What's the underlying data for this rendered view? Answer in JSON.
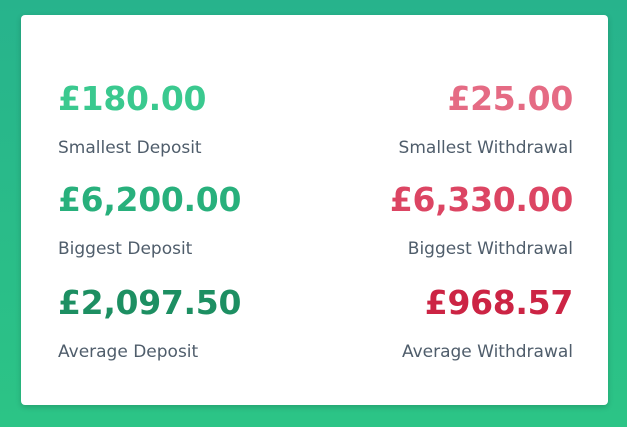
{
  "deposits": [
    {
      "amount": "£180.00",
      "label": "Smallest Deposit"
    },
    {
      "amount": "£6,200.00",
      "label": "Biggest Deposit"
    },
    {
      "amount": "£2,097.50",
      "label": "Average Deposit"
    }
  ],
  "withdrawals": [
    {
      "amount": "£25.00",
      "label": "Smallest Withdrawal"
    },
    {
      "amount": "£6,330.00",
      "label": "Biggest Withdrawal"
    },
    {
      "amount": "£968.57",
      "label": "Average Withdrawal"
    }
  ],
  "colors": {
    "background_top": "#27b38c",
    "background_bottom": "#2cc486",
    "deposit_light": "#3ac98f",
    "deposit_mid": "#28b07c",
    "deposit_dark": "#1d8f62",
    "withdrawal_light": "#e56b84",
    "withdrawal_mid": "#dc4563",
    "withdrawal_dark": "#cc2444",
    "label_text": "#4f5d6b"
  }
}
